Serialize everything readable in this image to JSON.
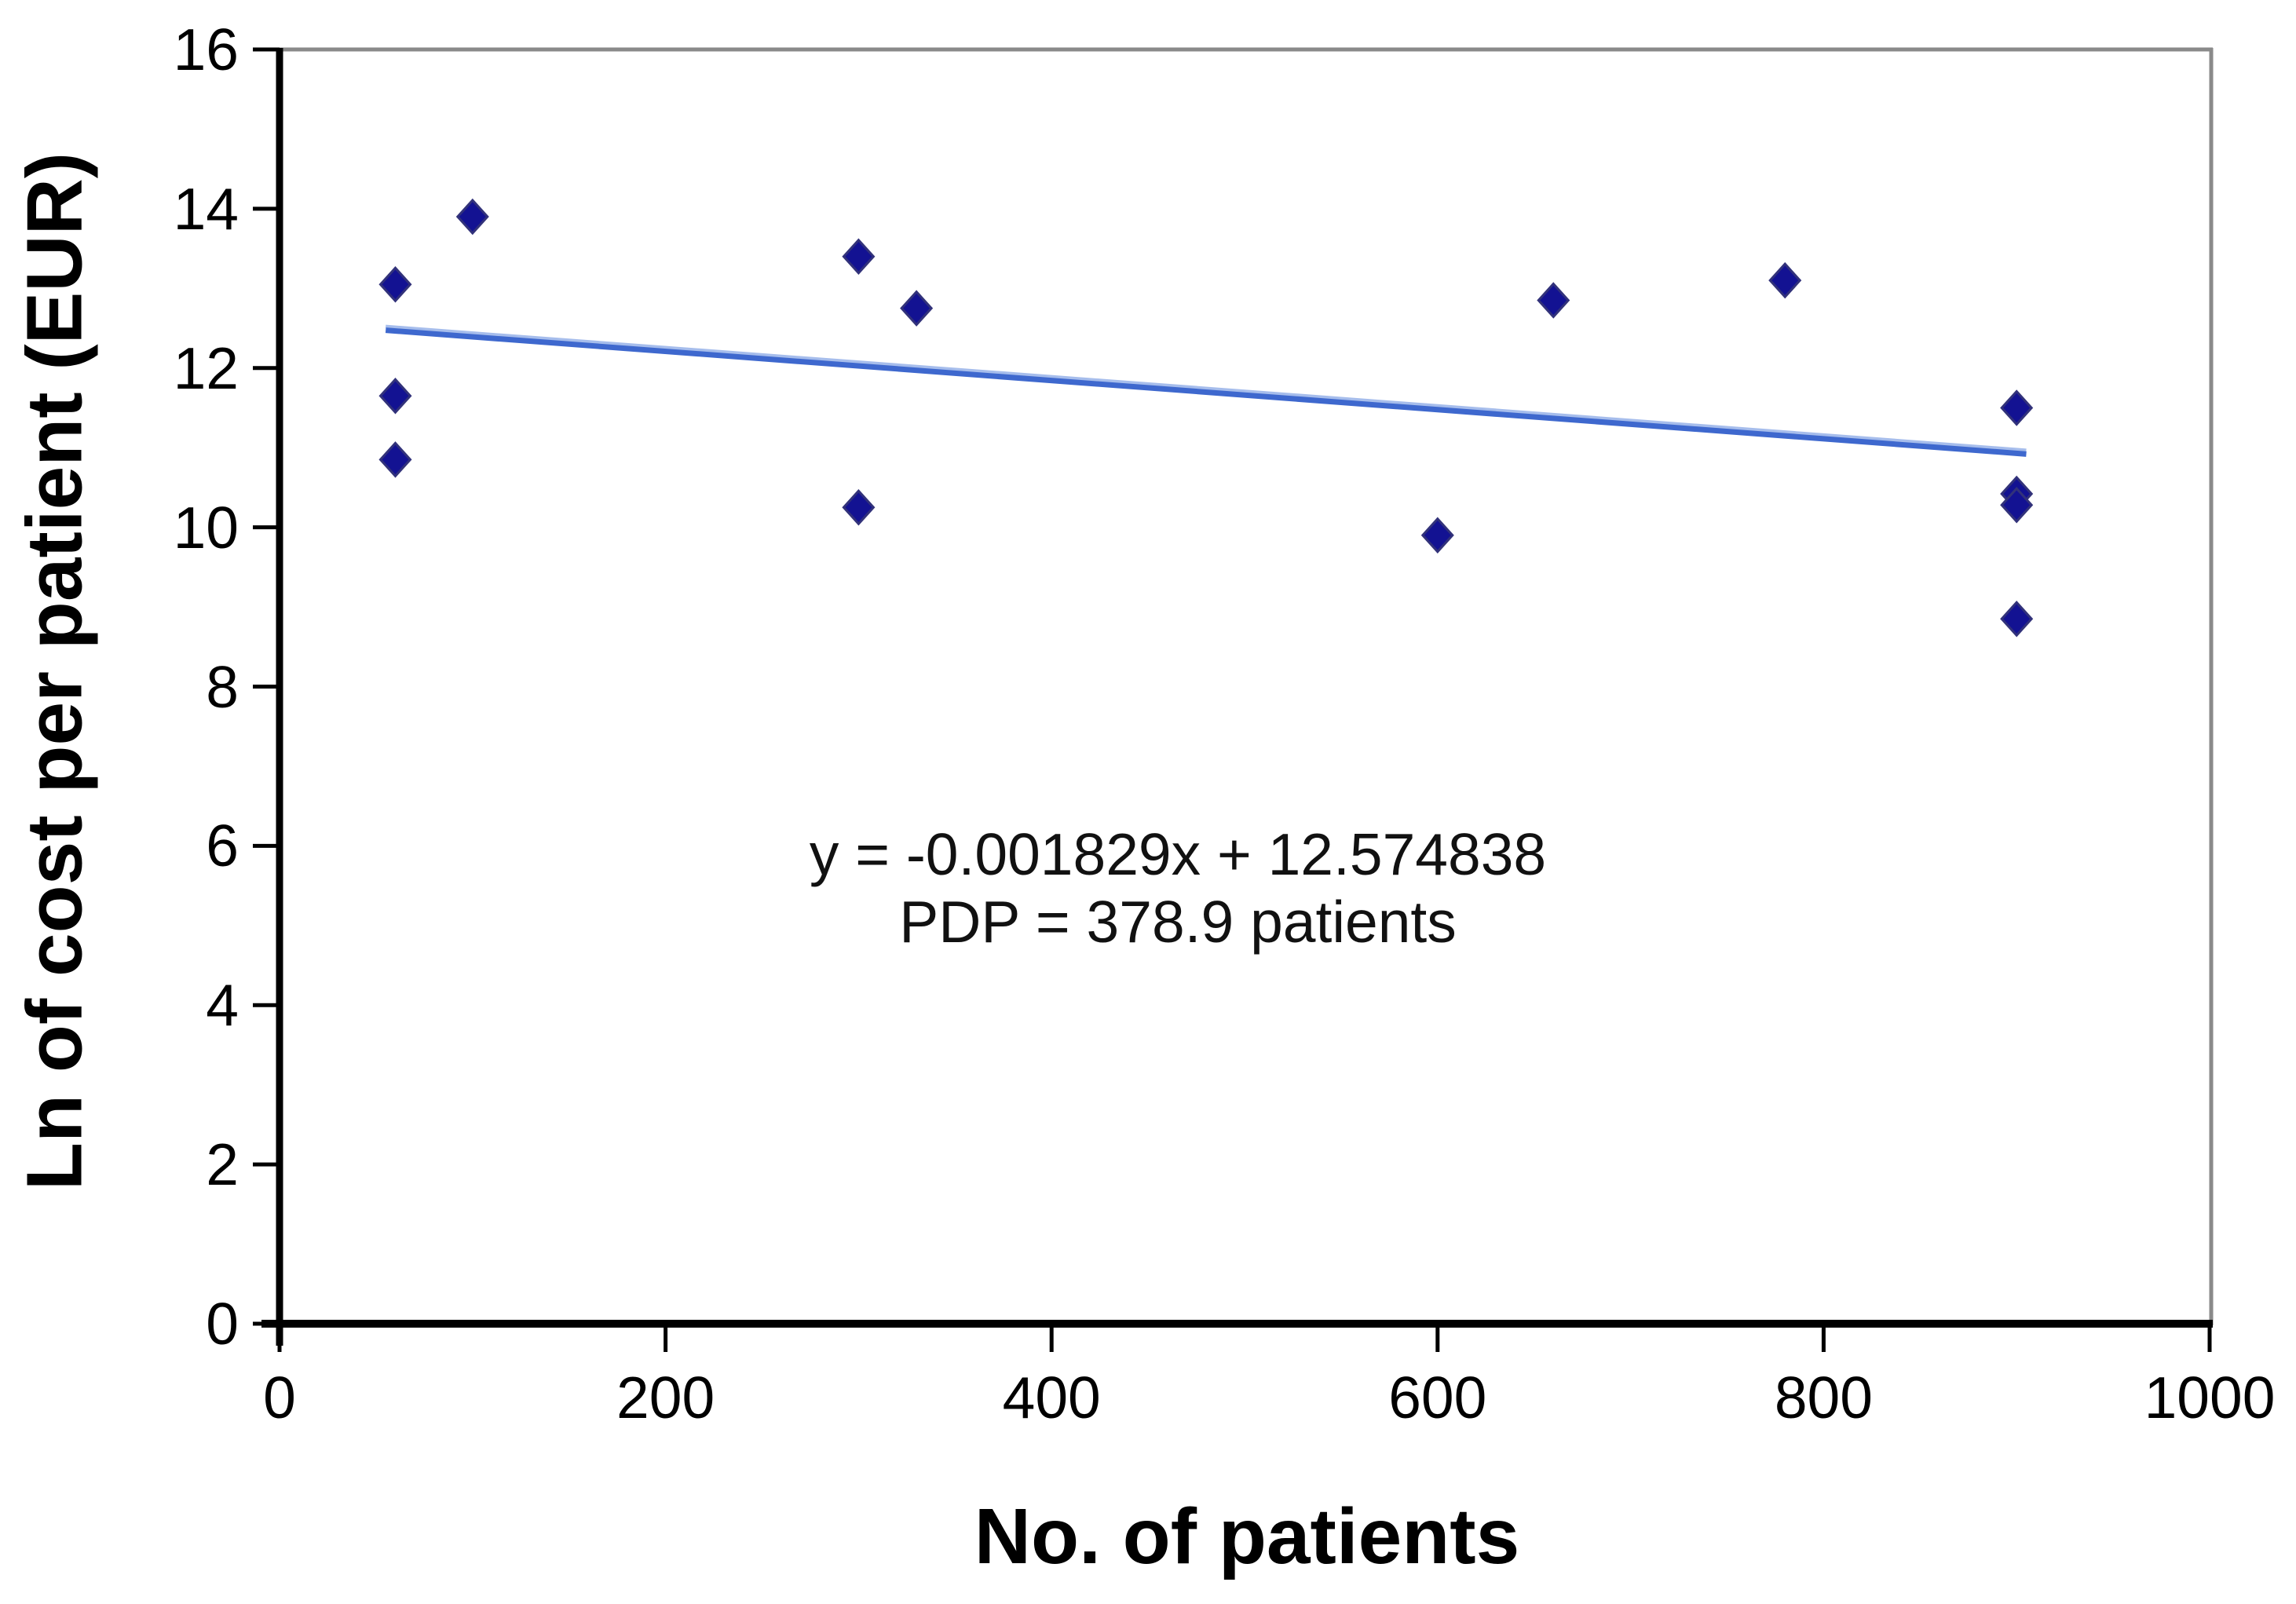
{
  "chart_data": {
    "type": "scatter",
    "title": "",
    "xlabel": "No. of patients",
    "ylabel": "Ln of cost per patient (EUR)",
    "xlim": [
      0,
      1000
    ],
    "ylim": [
      0,
      16
    ],
    "x_ticks": [
      "0",
      "200",
      "400",
      "600",
      "800",
      "1000"
    ],
    "y_ticks": [
      "0",
      "2",
      "4",
      "6",
      "8",
      "10",
      "12",
      "14",
      "16"
    ],
    "grid": false,
    "legend": "none",
    "marker_shape": "diamond",
    "points": [
      {
        "x": 60,
        "y": 13.05
      },
      {
        "x": 100,
        "y": 13.9
      },
      {
        "x": 60,
        "y": 11.65
      },
      {
        "x": 60,
        "y": 10.85
      },
      {
        "x": 300,
        "y": 13.4
      },
      {
        "x": 330,
        "y": 12.75
      },
      {
        "x": 300,
        "y": 10.25
      },
      {
        "x": 600,
        "y": 9.9
      },
      {
        "x": 660,
        "y": 12.85
      },
      {
        "x": 780,
        "y": 13.1
      },
      {
        "x": 900,
        "y": 11.5
      },
      {
        "x": 900,
        "y": 10.42
      },
      {
        "x": 900,
        "y": 10.28
      },
      {
        "x": 900,
        "y": 8.85
      }
    ],
    "trendline": {
      "slope": -0.001829,
      "intercept": 12.574838,
      "x_start": 55,
      "x_end": 905
    },
    "annotation": {
      "line1": "y = -0.001829x + 12.574838",
      "line2": "PDP = 378.9 patients"
    },
    "colors": {
      "marker": "#131292",
      "marker_outline": "#32327a",
      "trendline": "#3e68ce",
      "trendline_highlight": "#a6bdec",
      "axis": "#000000",
      "frame": "#8a8a8a",
      "text": "#000000"
    }
  }
}
